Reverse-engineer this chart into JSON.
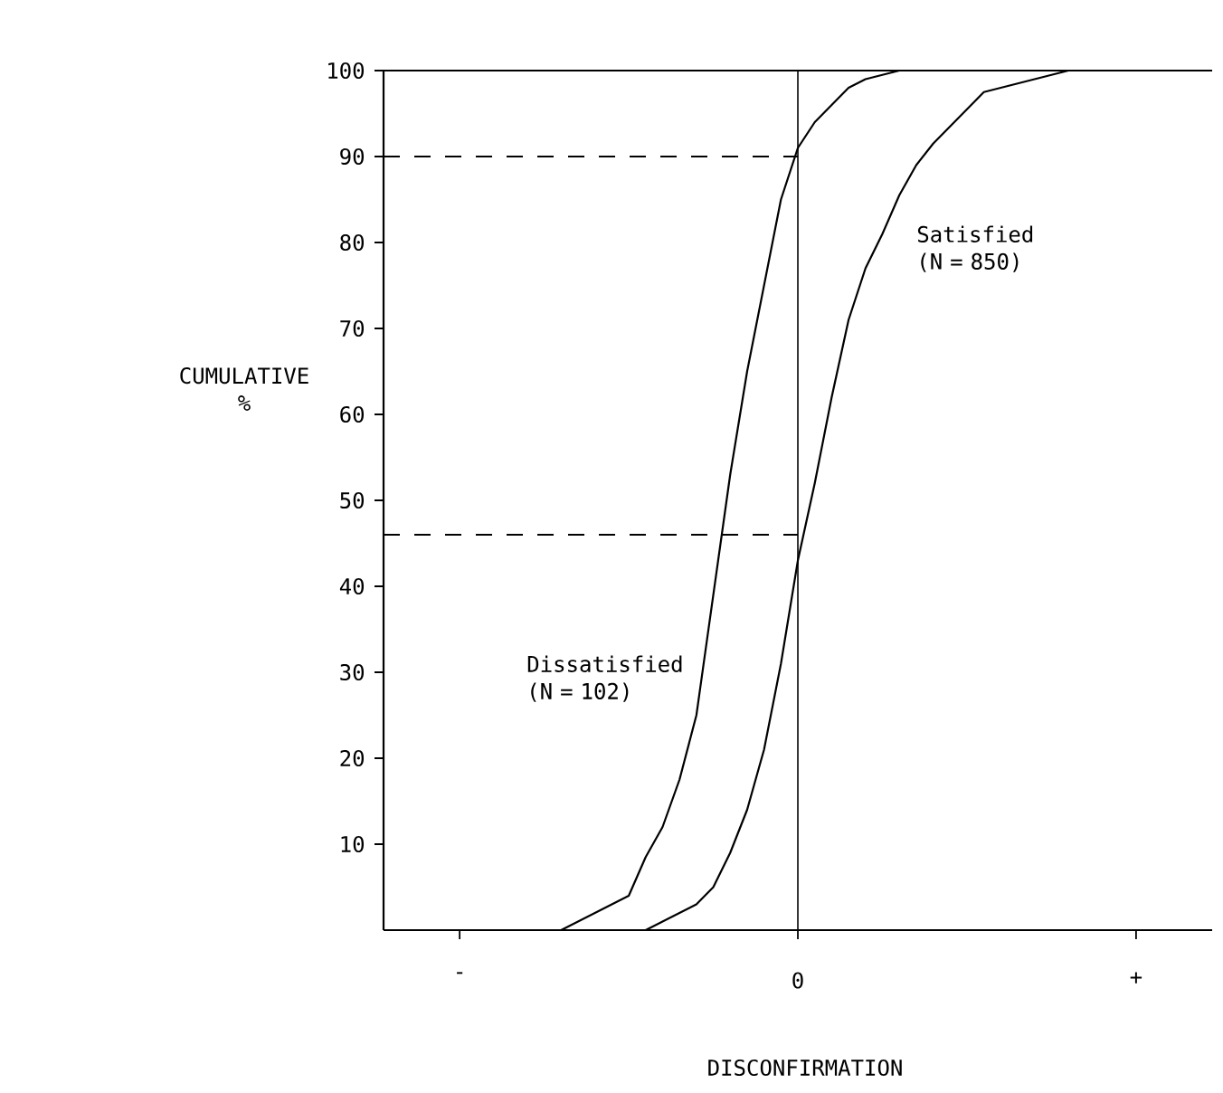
{
  "chart_data": {
    "type": "line",
    "xlabel": "DISCONFIRMATION",
    "ylabel": "CUMULATIVE %",
    "categories": [
      null,
      null,
      null,
      null,
      "-",
      null,
      null,
      null,
      null,
      null,
      null,
      null,
      null,
      null,
      null,
      null,
      null,
      null,
      null,
      null,
      null,
      null,
      null,
      null,
      "0",
      null,
      null,
      null,
      null,
      null,
      null,
      null,
      null,
      null,
      null,
      null,
      null,
      null,
      null,
      null,
      null,
      null,
      null,
      null,
      "+",
      null,
      null,
      null,
      null
    ],
    "ylim": [
      0,
      100
    ],
    "yticks": [
      10,
      20,
      30,
      40,
      50,
      60,
      70,
      80,
      90,
      100
    ],
    "series": [
      {
        "name": "Dissatisfied (N = 102)",
        "color": "#000000",
        "values": [
          null,
          null,
          null,
          null,
          null,
          null,
          null,
          null,
          null,
          null,
          0,
          1,
          2,
          3,
          4,
          8.5,
          12,
          17.5,
          25,
          39,
          53,
          65,
          75,
          85,
          91,
          94,
          96,
          98,
          99,
          99.5,
          100,
          null,
          null,
          null,
          null,
          null,
          null,
          null,
          null,
          null,
          null,
          null,
          null,
          null,
          null,
          null,
          null,
          null,
          null
        ]
      },
      {
        "name": "Satisfied (N = 850)",
        "color": "#000000",
        "values": [
          null,
          null,
          null,
          null,
          null,
          null,
          null,
          null,
          null,
          null,
          null,
          null,
          null,
          null,
          null,
          0,
          1,
          2,
          3,
          5,
          9,
          14,
          21,
          31,
          43,
          52,
          62,
          71,
          77,
          81,
          85.5,
          89,
          91.5,
          93.5,
          95.5,
          97.5,
          98,
          98.5,
          99,
          99.5,
          100,
          null,
          null,
          null,
          null,
          null,
          null,
          null,
          null
        ]
      }
    ],
    "ref_lines": [
      {
        "axis": "y",
        "value": 100
      },
      {
        "axis": "x",
        "value": "0"
      },
      {
        "axis": "y",
        "value": 90,
        "line_style": "dashed"
      },
      {
        "axis": "y",
        "value": 46,
        "line_style": "dashed"
      }
    ],
    "legend": false,
    "grid": false,
    "marker": "none",
    "line_style": "solid"
  }
}
